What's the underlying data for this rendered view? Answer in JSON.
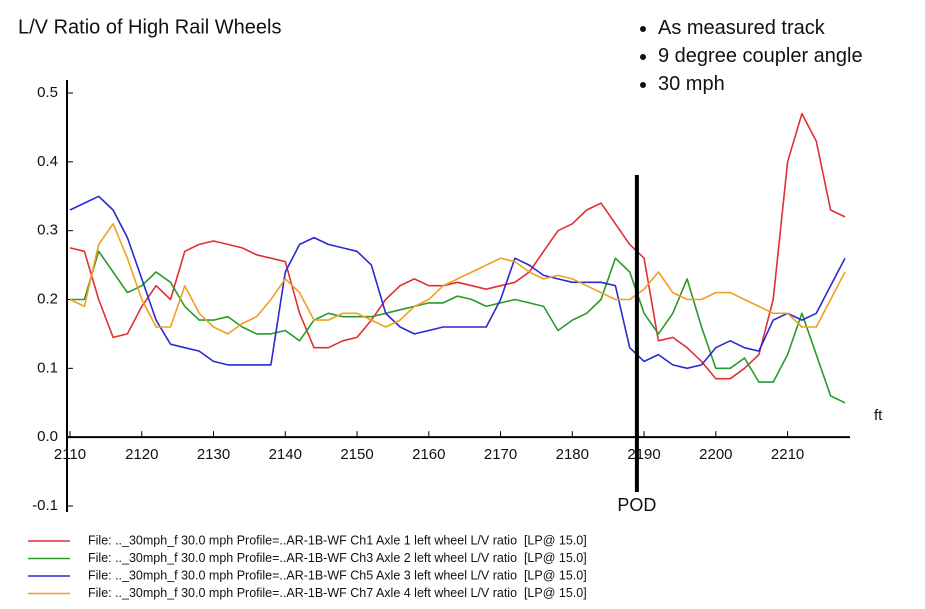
{
  "chart_data": {
    "type": "line",
    "title": "L/V Ratio of High Rail Wheels",
    "notes": [
      "As measured track",
      "9 degree coupler angle",
      "30 mph"
    ],
    "x_label": "ft",
    "marker": {
      "x": 2189,
      "label": "POD"
    },
    "xlim": [
      2110,
      2218
    ],
    "ylim": [
      -0.1,
      0.5
    ],
    "xticks": [
      2110,
      2120,
      2130,
      2140,
      2150,
      2160,
      2170,
      2180,
      2190,
      2200,
      2210
    ],
    "yticks": [
      -0.1,
      {
        "value": 0,
        "label": "0.0"
      },
      0.1,
      0.2,
      0.3,
      0.4,
      0.5
    ],
    "x": [
      2110,
      2112,
      2114,
      2116,
      2118,
      2120,
      2122,
      2124,
      2126,
      2128,
      2130,
      2132,
      2134,
      2136,
      2138,
      2140,
      2142,
      2144,
      2146,
      2148,
      2150,
      2152,
      2154,
      2156,
      2158,
      2160,
      2162,
      2164,
      2166,
      2168,
      2170,
      2172,
      2174,
      2176,
      2178,
      2180,
      2182,
      2184,
      2186,
      2188,
      2190,
      2192,
      2194,
      2196,
      2198,
      2200,
      2202,
      2204,
      2206,
      2208,
      2210,
      2212,
      2214,
      2216,
      2218
    ],
    "series": [
      {
        "name": "File: .._30mph_f 30.0 mph Profile=..AR-1B-WF Ch1 Axle 1 left wheel L/V ratio  [LP@ 15.0]",
        "color": "#e03030",
        "values": [
          0.275,
          0.27,
          0.2,
          0.145,
          0.15,
          0.19,
          0.22,
          0.2,
          0.27,
          0.28,
          0.285,
          0.28,
          0.275,
          0.265,
          0.26,
          0.255,
          0.18,
          0.13,
          0.13,
          0.14,
          0.145,
          0.17,
          0.2,
          0.22,
          0.23,
          0.22,
          0.22,
          0.225,
          0.22,
          0.215,
          0.22,
          0.225,
          0.24,
          0.27,
          0.3,
          0.31,
          0.33,
          0.34,
          0.31,
          0.28,
          0.26,
          0.14,
          0.145,
          0.13,
          0.11,
          0.085,
          0.085,
          0.1,
          0.12,
          0.2,
          0.4,
          0.47,
          0.43,
          0.33,
          0.32
        ]
      },
      {
        "name": "File: .._30mph_f 30.0 mph Profile=..AR-1B-WF Ch3 Axle 2 left wheel L/V ratio  [LP@ 15.0]",
        "color": "#2a9a2a",
        "values": [
          0.2,
          0.2,
          0.27,
          0.24,
          0.21,
          0.22,
          0.24,
          0.225,
          0.19,
          0.17,
          0.17,
          0.175,
          0.16,
          0.15,
          0.15,
          0.155,
          0.14,
          0.17,
          0.18,
          0.175,
          0.175,
          0.175,
          0.18,
          0.185,
          0.19,
          0.195,
          0.195,
          0.205,
          0.2,
          0.19,
          0.195,
          0.2,
          0.195,
          0.19,
          0.155,
          0.17,
          0.18,
          0.2,
          0.26,
          0.24,
          0.18,
          0.15,
          0.18,
          0.23,
          0.16,
          0.1,
          0.1,
          0.115,
          0.08,
          0.08,
          0.12,
          0.18,
          0.12,
          0.06,
          0.05
        ]
      },
      {
        "name": "File: .._30mph_f 30.0 mph Profile=..AR-1B-WF Ch5 Axle 3 left wheel L/V ratio  [LP@ 15.0]",
        "color": "#2a2ad0",
        "values": [
          0.33,
          0.34,
          0.35,
          0.33,
          0.29,
          0.23,
          0.17,
          0.135,
          0.13,
          0.125,
          0.11,
          0.105,
          0.105,
          0.105,
          0.105,
          0.24,
          0.28,
          0.29,
          0.28,
          0.275,
          0.27,
          0.25,
          0.18,
          0.16,
          0.15,
          0.155,
          0.16,
          0.16,
          0.16,
          0.16,
          0.2,
          0.26,
          0.25,
          0.235,
          0.23,
          0.225,
          0.225,
          0.225,
          0.22,
          0.13,
          0.11,
          0.12,
          0.105,
          0.1,
          0.105,
          0.13,
          0.14,
          0.13,
          0.125,
          0.17,
          0.18,
          0.17,
          0.18,
          0.22,
          0.26
        ]
      },
      {
        "name": "File: .._30mph_f 30.0 mph Profile=..AR-1B-WF Ch7 Axle 4 left wheel L/V ratio  [LP@ 15.0]",
        "color": "#f0a020",
        "values": [
          0.2,
          0.19,
          0.28,
          0.31,
          0.26,
          0.2,
          0.16,
          0.16,
          0.22,
          0.18,
          0.16,
          0.15,
          0.165,
          0.175,
          0.2,
          0.23,
          0.21,
          0.17,
          0.17,
          0.18,
          0.18,
          0.17,
          0.16,
          0.17,
          0.19,
          0.2,
          0.22,
          0.23,
          0.24,
          0.25,
          0.26,
          0.255,
          0.24,
          0.23,
          0.235,
          0.23,
          0.22,
          0.21,
          0.2,
          0.2,
          0.215,
          0.24,
          0.21,
          0.2,
          0.2,
          0.21,
          0.21,
          0.2,
          0.19,
          0.18,
          0.18,
          0.16,
          0.16,
          0.2,
          0.24
        ]
      }
    ]
  }
}
